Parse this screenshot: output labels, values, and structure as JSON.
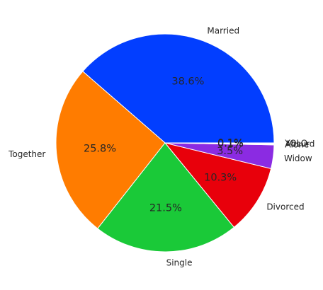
{
  "chart_data": {
    "type": "pie",
    "start_angle_deg": 0,
    "direction": "counterclockwise",
    "categories": [
      "Married",
      "Together",
      "Single",
      "Divorced",
      "Widow",
      "Alone",
      "Absurd",
      "YOLO"
    ],
    "values": [
      38.6,
      25.8,
      21.5,
      10.3,
      3.5,
      0.1,
      0.1,
      0.1
    ],
    "value_labels": [
      "38.6%",
      "25.8%",
      "21.5%",
      "10.3%",
      "3.5%",
      "0.1%",
      "0.1%",
      "0.1%"
    ],
    "colors": [
      "#023eff",
      "#ff7c00",
      "#1ac938",
      "#e8000b",
      "#8b2be2",
      "#9f4800",
      "#f14cc1",
      "#a3a3a3"
    ],
    "title": "",
    "legend": "none"
  }
}
